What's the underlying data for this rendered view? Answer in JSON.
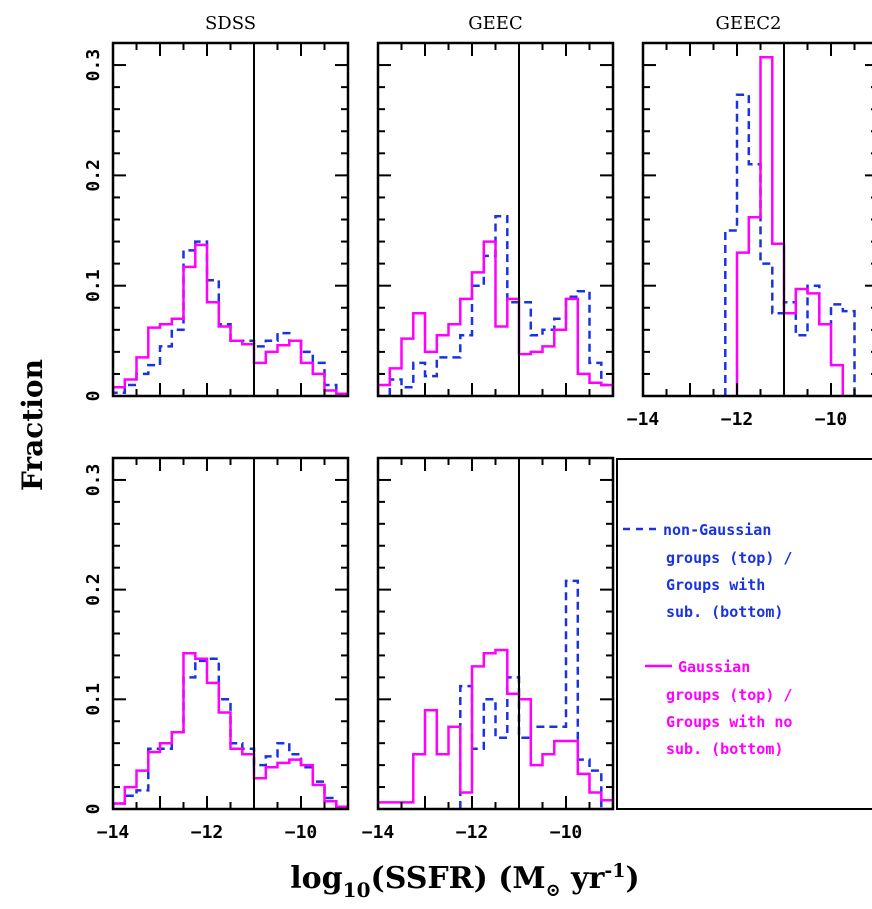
{
  "figure": {
    "ylabel": "Fraction",
    "xlabel_main": "log",
    "xlabel_sub": "10",
    "xlabel_mid": "(SSFR) (M",
    "xlabel_sun": "⊙",
    "xlabel_unit": " yr",
    "xlabel_exp": "-1",
    "xlabel_close": ")"
  },
  "colors": {
    "blue": "#1a33e0",
    "magenta": "#ff00ff",
    "black": "#000000"
  },
  "legend": {
    "blue_lines": [
      "non-Gaussian",
      "groups (top) /",
      "Groups with",
      "sub. (bottom)"
    ],
    "magenta_lines": [
      "Gaussian",
      "groups (top) /",
      "Groups with no",
      "sub. (bottom)"
    ]
  },
  "chart_data": [
    {
      "type": "histogram",
      "panel": "top-left",
      "title": "SDSS",
      "xlim": [
        -14,
        -9
      ],
      "ylim": [
        0,
        0.32
      ],
      "yticks": [
        0,
        0.1,
        0.2,
        0.3
      ],
      "ytick_labels": [
        "0",
        "0.1",
        "0.2",
        "0.3"
      ],
      "xticks": [],
      "xtick_labels": [],
      "vline": -11,
      "bin_width": 0.25,
      "series": [
        {
          "name": "non-Gaussian groups",
          "color": "blue",
          "dash": true,
          "bin_starts": [
            -14,
            -13.75,
            -13.5,
            -13.25,
            -13,
            -12.75,
            -12.5,
            -12.25,
            -12,
            -11.75,
            -11.5,
            -11.25,
            -11,
            -10.75,
            -10.5,
            -10.25,
            -10,
            -9.75,
            -9.5,
            -9.25
          ],
          "values": [
            0.003,
            0.01,
            0.02,
            0.028,
            0.045,
            0.06,
            0.132,
            0.14,
            0.105,
            0.065,
            0.05,
            0.05,
            0.045,
            0.05,
            0.057,
            0.05,
            0.04,
            0.03,
            0.01,
            0.002
          ]
        },
        {
          "name": "Gaussian groups",
          "color": "magenta",
          "dash": false,
          "bin_starts": [
            -14,
            -13.75,
            -13.5,
            -13.25,
            -13,
            -12.75,
            -12.5,
            -12.25,
            -12,
            -11.75,
            -11.5,
            -11.25,
            -11,
            -10.75,
            -10.5,
            -10.25,
            -10,
            -9.75,
            -9.5,
            -9.25
          ],
          "values": [
            0.008,
            0.015,
            0.035,
            0.062,
            0.065,
            0.07,
            0.117,
            0.137,
            0.085,
            0.063,
            0.05,
            0.047,
            0.03,
            0.04,
            0.046,
            0.05,
            0.03,
            0.02,
            0.005,
            0.002
          ]
        }
      ]
    },
    {
      "type": "histogram",
      "panel": "top-middle",
      "title": "GEEC",
      "xlim": [
        -14,
        -9
      ],
      "ylim": [
        0,
        0.32
      ],
      "yticks": [
        0,
        0.1,
        0.2,
        0.3
      ],
      "ytick_labels": [],
      "xticks": [],
      "xtick_labels": [],
      "vline": -11,
      "bin_width": 0.25,
      "series": [
        {
          "name": "non-Gaussian groups",
          "color": "blue",
          "dash": true,
          "bin_starts": [
            -13.75,
            -13.5,
            -13.25,
            -13,
            -12.75,
            -12.5,
            -12.25,
            -12,
            -11.75,
            -11.5,
            -11.25,
            -11,
            -10.75,
            -10.5,
            -10.25,
            -10,
            -9.75,
            -9.5,
            -9.25
          ],
          "values": [
            0.015,
            0.008,
            0.03,
            0.018,
            0.035,
            0.035,
            0.055,
            0.1,
            0.127,
            0.163,
            0.085,
            0.085,
            0.055,
            0.06,
            0.07,
            0.09,
            0.095,
            0.03,
            0.01
          ]
        },
        {
          "name": "Gaussian groups",
          "color": "magenta",
          "dash": false,
          "bin_starts": [
            -14,
            -13.75,
            -13.5,
            -13.25,
            -13,
            -12.75,
            -12.5,
            -12.25,
            -12,
            -11.75,
            -11.5,
            -11.25,
            -11,
            -10.75,
            -10.5,
            -10.25,
            -10,
            -9.75,
            -9.5,
            -9.25
          ],
          "values": [
            0.01,
            0.025,
            0.052,
            0.075,
            0.04,
            0.055,
            0.065,
            0.088,
            0.112,
            0.14,
            0.063,
            0.088,
            0.038,
            0.04,
            0.045,
            0.06,
            0.088,
            0.02,
            0.012,
            0.01
          ]
        }
      ]
    },
    {
      "type": "histogram",
      "panel": "top-right",
      "title": "GEEC2",
      "xlim": [
        -14,
        -9
      ],
      "ylim": [
        0,
        0.32
      ],
      "yticks": [
        0,
        0.1,
        0.2,
        0.3
      ],
      "ytick_labels": [],
      "xticks": [
        -14,
        -12,
        -10
      ],
      "xtick_labels": [
        "−14",
        "−12",
        "−10"
      ],
      "vline": -11,
      "bin_width": 0.25,
      "series": [
        {
          "name": "non-Gaussian groups",
          "color": "blue",
          "dash": true,
          "bin_starts": [
            -12.25,
            -12,
            -11.75,
            -11.5,
            -11.25,
            -11,
            -10.75,
            -10.5,
            -10.25,
            -10,
            -9.75
          ],
          "values": [
            0.15,
            0.273,
            0.21,
            0.12,
            0.075,
            0.085,
            0.055,
            0.1,
            0.065,
            0.083,
            0.077
          ]
        },
        {
          "name": "Gaussian groups",
          "color": "magenta",
          "dash": false,
          "bin_starts": [
            -12,
            -11.75,
            -11.5,
            -11.25,
            -11,
            -10.75,
            -10.5,
            -10.25,
            -10
          ],
          "values": [
            0.13,
            0.162,
            0.307,
            0.138,
            0.075,
            0.097,
            0.093,
            0.065,
            0.028
          ]
        }
      ]
    },
    {
      "type": "histogram",
      "panel": "bottom-left",
      "title": "",
      "xlim": [
        -14,
        -9
      ],
      "ylim": [
        0,
        0.32
      ],
      "yticks": [
        0,
        0.1,
        0.2,
        0.3
      ],
      "ytick_labels": [
        "0",
        "0.1",
        "0.2",
        "0.3"
      ],
      "xticks": [
        -14,
        -12,
        -10
      ],
      "xtick_labels": [
        "−14",
        "−12",
        "−10"
      ],
      "vline": -11,
      "bin_width": 0.25,
      "series": [
        {
          "name": "non-Gaussian groups",
          "color": "blue",
          "dash": true,
          "bin_starts": [
            -14,
            -13.75,
            -13.5,
            -13.25,
            -13,
            -12.75,
            -12.5,
            -12.25,
            -12,
            -11.75,
            -11.5,
            -11.25,
            -11,
            -10.75,
            -10.5,
            -10.25,
            -10,
            -9.75,
            -9.5,
            -9.25
          ],
          "values": [
            0.005,
            0.012,
            0.017,
            0.055,
            0.055,
            0.07,
            0.12,
            0.135,
            0.137,
            0.1,
            0.06,
            0.055,
            0.04,
            0.048,
            0.06,
            0.05,
            0.038,
            0.025,
            0.01,
            0.002
          ]
        },
        {
          "name": "Gaussian groups",
          "color": "magenta",
          "dash": false,
          "bin_starts": [
            -14,
            -13.75,
            -13.5,
            -13.25,
            -13,
            -12.75,
            -12.5,
            -12.25,
            -12,
            -11.75,
            -11.5,
            -11.25,
            -11,
            -10.75,
            -10.5,
            -10.25,
            -10,
            -9.75,
            -9.5,
            -9.25
          ],
          "values": [
            0.005,
            0.02,
            0.035,
            0.052,
            0.06,
            0.07,
            0.142,
            0.137,
            0.115,
            0.088,
            0.055,
            0.05,
            0.028,
            0.038,
            0.042,
            0.045,
            0.04,
            0.022,
            0.007,
            0.002
          ]
        }
      ]
    },
    {
      "type": "histogram",
      "panel": "bottom-middle",
      "title": "",
      "xlim": [
        -14,
        -9
      ],
      "ylim": [
        0,
        0.32
      ],
      "yticks": [
        0,
        0.1,
        0.2,
        0.3
      ],
      "ytick_labels": [],
      "xticks": [
        -14,
        -12,
        -10
      ],
      "xtick_labels": [
        "−14",
        "−12",
        "−10"
      ],
      "vline": -11,
      "bin_width": 0.25,
      "series": [
        {
          "name": "Groups with sub.",
          "color": "blue",
          "dash": true,
          "bin_starts": [
            -12.25,
            -12,
            -11.75,
            -11.5,
            -11.25,
            -11,
            -10.75,
            -10.5,
            -10.25,
            -10,
            -9.75,
            -9.5
          ],
          "values": [
            0.112,
            0.055,
            0.1,
            0.065,
            0.12,
            0.065,
            0.075,
            0.075,
            0.075,
            0.208,
            0.045,
            0.035
          ]
        },
        {
          "name": "Groups with no sub.",
          "color": "magenta",
          "dash": false,
          "bin_starts": [
            -14,
            -13.75,
            -13.5,
            -13.25,
            -13,
            -12.75,
            -12.5,
            -12.25,
            -12,
            -11.75,
            -11.5,
            -11.25,
            -11,
            -10.75,
            -10.5,
            -10.25,
            -10,
            -9.75,
            -9.5,
            -9.25
          ],
          "values": [
            0.006,
            0.006,
            0.006,
            0.05,
            0.09,
            0.05,
            0.075,
            0.015,
            0.13,
            0.142,
            0.145,
            0.105,
            0.1,
            0.04,
            0.05,
            0.062,
            0.062,
            0.032,
            0.015,
            0.008
          ]
        }
      ]
    }
  ]
}
